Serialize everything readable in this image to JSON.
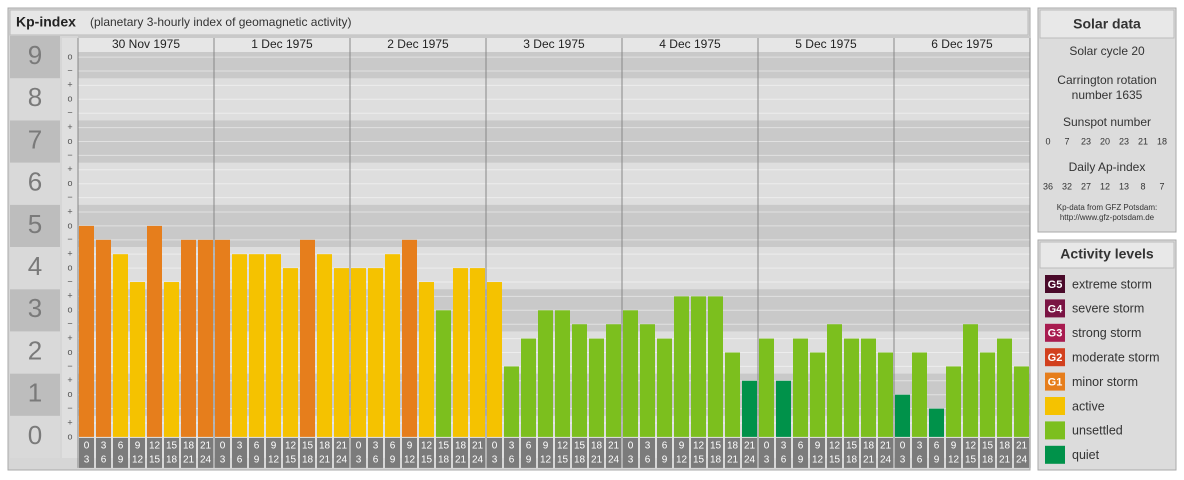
{
  "header": {
    "title": "Kp-index",
    "subtitle": "(planetary 3-hourly index of geomagnetic activity)"
  },
  "chart_data": {
    "type": "bar",
    "days": [
      "30 Nov 1975",
      "1 Dec 1975",
      "2 Dec 1975",
      "3 Dec 1975",
      "4 Dec 1975",
      "5 Dec 1975",
      "6 Dec 1975"
    ],
    "categories": [
      [
        0,
        3
      ],
      [
        3,
        6
      ],
      [
        6,
        9
      ],
      [
        9,
        12
      ],
      [
        12,
        15
      ],
      [
        15,
        18
      ],
      [
        18,
        21
      ],
      [
        21,
        24
      ],
      [
        0,
        3
      ],
      [
        3,
        6
      ],
      [
        6,
        9
      ],
      [
        9,
        12
      ],
      [
        12,
        15
      ],
      [
        15,
        18
      ],
      [
        18,
        21
      ],
      [
        21,
        24
      ],
      [
        0,
        3
      ],
      [
        3,
        6
      ],
      [
        6,
        9
      ],
      [
        9,
        12
      ],
      [
        12,
        15
      ],
      [
        15,
        18
      ],
      [
        18,
        21
      ],
      [
        21,
        24
      ],
      [
        0,
        3
      ],
      [
        3,
        6
      ],
      [
        6,
        9
      ],
      [
        9,
        12
      ],
      [
        12,
        15
      ],
      [
        15,
        18
      ],
      [
        18,
        21
      ],
      [
        21,
        24
      ],
      [
        0,
        3
      ],
      [
        3,
        6
      ],
      [
        6,
        9
      ],
      [
        9,
        12
      ],
      [
        12,
        15
      ],
      [
        15,
        18
      ],
      [
        18,
        21
      ],
      [
        21,
        24
      ],
      [
        0,
        3
      ],
      [
        3,
        6
      ],
      [
        6,
        9
      ],
      [
        9,
        12
      ],
      [
        12,
        15
      ],
      [
        15,
        18
      ],
      [
        18,
        21
      ],
      [
        21,
        24
      ],
      [
        0,
        3
      ],
      [
        3,
        6
      ],
      [
        6,
        9
      ],
      [
        9,
        12
      ],
      [
        12,
        15
      ],
      [
        15,
        18
      ],
      [
        18,
        21
      ],
      [
        21,
        24
      ]
    ],
    "series": [
      {
        "values": [
          5,
          4.67,
          4.33,
          3.67,
          5,
          3.67,
          4.67,
          4.67,
          4.67,
          4.33,
          4.33,
          4.33,
          4,
          4.67,
          4.33,
          4,
          4,
          4,
          4.33,
          4.67,
          3.67,
          3,
          4,
          4,
          3.67,
          1.67,
          2.33,
          3,
          3,
          2.67,
          2.33,
          2.67,
          3,
          2.67,
          2.33,
          3.33,
          3.33,
          3.33,
          2,
          1.33,
          2.33,
          1.33,
          2.33,
          2,
          2.67,
          2.33,
          2.33,
          2,
          1,
          2,
          0.67,
          1.67,
          2.67,
          2,
          2.33,
          1.67
        ],
        "colors": [
          "#e67e1c",
          "#e67e1c",
          "#f5c200",
          "#f5c200",
          "#e67e1c",
          "#f5c200",
          "#e67e1c",
          "#e67e1c",
          "#e67e1c",
          "#f5c200",
          "#f5c200",
          "#f5c200",
          "#f5c200",
          "#e67e1c",
          "#f5c200",
          "#f5c200",
          "#f5c200",
          "#f5c200",
          "#f5c200",
          "#e67e1c",
          "#f5c200",
          "#7cbf1e",
          "#f5c200",
          "#f5c200",
          "#f5c200",
          "#7cbf1e",
          "#7cbf1e",
          "#7cbf1e",
          "#7cbf1e",
          "#7cbf1e",
          "#7cbf1e",
          "#7cbf1e",
          "#7cbf1e",
          "#7cbf1e",
          "#7cbf1e",
          "#7cbf1e",
          "#7cbf1e",
          "#7cbf1e",
          "#7cbf1e",
          "#00924a",
          "#7cbf1e",
          "#00924a",
          "#7cbf1e",
          "#7cbf1e",
          "#7cbf1e",
          "#7cbf1e",
          "#7cbf1e",
          "#7cbf1e",
          "#00924a",
          "#7cbf1e",
          "#00924a",
          "#7cbf1e",
          "#7cbf1e",
          "#7cbf1e",
          "#7cbf1e",
          "#7cbf1e"
        ]
      }
    ],
    "ylim": [
      -0.5,
      9.5
    ],
    "yticks": [
      0,
      1,
      2,
      3,
      4,
      5,
      6,
      7,
      8,
      9
    ],
    "minor_yticks": [
      {
        "value": 9,
        "label": "o"
      },
      {
        "value": 8.67,
        "label": "−"
      },
      {
        "value": 8.33,
        "label": "+"
      },
      {
        "value": 8,
        "label": "o"
      },
      {
        "value": 7.67,
        "label": "−"
      },
      {
        "value": 7.33,
        "label": "+"
      },
      {
        "value": 7,
        "label": "o"
      },
      {
        "value": 6.67,
        "label": "−"
      },
      {
        "value": 6.33,
        "label": "+"
      },
      {
        "value": 6,
        "label": "o"
      },
      {
        "value": 5.67,
        "label": "−"
      },
      {
        "value": 5.33,
        "label": "+"
      },
      {
        "value": 5,
        "label": "o"
      },
      {
        "value": 4.67,
        "label": "−"
      },
      {
        "value": 4.33,
        "label": "+"
      },
      {
        "value": 4,
        "label": "o"
      },
      {
        "value": 3.67,
        "label": "−"
      },
      {
        "value": 3.33,
        "label": "+"
      },
      {
        "value": 3,
        "label": "o"
      },
      {
        "value": 2.67,
        "label": "−"
      },
      {
        "value": 2.33,
        "label": "+"
      },
      {
        "value": 2,
        "label": "o"
      },
      {
        "value": 1.67,
        "label": "−"
      },
      {
        "value": 1.33,
        "label": "+"
      },
      {
        "value": 1,
        "label": "o"
      },
      {
        "value": 0.67,
        "label": "−"
      },
      {
        "value": 0.33,
        "label": "+"
      },
      {
        "value": 0,
        "label": "o"
      }
    ],
    "grid": true
  },
  "solar_data": {
    "title": "Solar data",
    "cycle": "Solar cycle 20",
    "carrington": [
      "Carrington rotation",
      "number 1635"
    ],
    "sunspot_label": "Sunspot number",
    "sunspot": [
      0,
      7,
      23,
      20,
      23,
      21,
      18
    ],
    "ap_label": "Daily Ap-index",
    "ap": [
      36,
      32,
      27,
      12,
      13,
      8,
      7
    ],
    "source": [
      "Kp-data from GFZ Potsdam:",
      "http://www.gfz-potsdam.de"
    ]
  },
  "activity_levels": {
    "title": "Activity levels",
    "items": [
      {
        "badge": "G5",
        "label": "extreme storm",
        "color": "#4a0a2a"
      },
      {
        "badge": "G4",
        "label": "severe storm",
        "color": "#7a1444"
      },
      {
        "badge": "G3",
        "label": "strong storm",
        "color": "#a81c50"
      },
      {
        "badge": "G2",
        "label": "moderate storm",
        "color": "#d2401e"
      },
      {
        "badge": "G1",
        "label": "minor storm",
        "color": "#e67e1c"
      },
      {
        "label": "active",
        "color": "#f5c200"
      },
      {
        "label": "unsettled",
        "color": "#7cbf1e"
      },
      {
        "label": "quiet",
        "color": "#00924a"
      }
    ]
  }
}
